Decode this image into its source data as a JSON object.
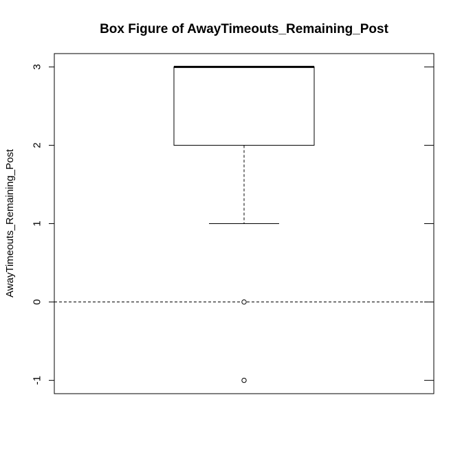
{
  "chart_data": {
    "type": "box",
    "title": "Box Figure of AwayTimeouts_Remaining_Post",
    "ylabel": "AwayTimeouts_Remaining_Post",
    "xlabel": "",
    "ylim": [
      -1.17,
      3.17
    ],
    "y_ticks": [
      -1,
      0,
      1,
      2,
      3
    ],
    "y_tick_labels": [
      "-1",
      "0",
      "1",
      "2",
      "3"
    ],
    "box": {
      "min": 1,
      "q1": 2,
      "median": 3,
      "q3": 3,
      "max": 3
    },
    "outliers": [
      0,
      -1
    ],
    "reference_line": {
      "y": 0,
      "style": "dashed"
    }
  }
}
